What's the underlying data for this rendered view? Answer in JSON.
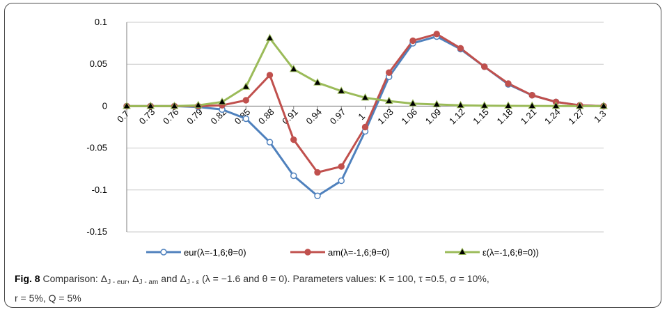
{
  "chart_data": {
    "type": "line",
    "x": [
      "0.7",
      "0.73",
      "0.76",
      "0.79",
      "0.82",
      "0.85",
      "0.88",
      "0.91",
      "0.94",
      "0.97",
      "1",
      "1.03",
      "1.06",
      "1.09",
      "1.12",
      "1.15",
      "1.18",
      "1.21",
      "1.24",
      "1.27",
      "1.3"
    ],
    "ylim": [
      -0.15,
      0.1
    ],
    "yticks": [
      "0.1",
      "0.05",
      "0",
      "-0.05",
      "-0.1",
      "-0.15"
    ],
    "ytick_values": [
      0.1,
      0.05,
      0,
      -0.05,
      -0.1,
      -0.15
    ],
    "grid": "horizontal",
    "legend_position": "bottom",
    "series": [
      {
        "name": "eur(λ=-1,6;θ=0)",
        "color": "#4F81BD",
        "marker": "open-circle",
        "values": [
          0,
          0,
          0,
          -0.001,
          -0.004,
          -0.015,
          -0.043,
          -0.083,
          -0.107,
          -0.089,
          -0.03,
          0.035,
          0.075,
          0.083,
          0.068,
          0.047,
          0.026,
          0.013,
          0.005,
          0.001,
          0
        ]
      },
      {
        "name": "am(λ=-1,6;θ=0)",
        "color": "#C0504D",
        "marker": "filled-circle",
        "values": [
          0,
          0,
          0,
          0,
          0.001,
          0.007,
          0.037,
          -0.04,
          -0.079,
          -0.072,
          -0.025,
          0.04,
          0.078,
          0.086,
          0.069,
          0.047,
          0.027,
          0.013,
          0.005,
          0.001,
          0
        ]
      },
      {
        "name": "ε(λ=-1,6;θ=0))",
        "color": "#9BBB59",
        "marker": "filled-triangle",
        "values": [
          0,
          0,
          0,
          0.001,
          0.005,
          0.023,
          0.081,
          0.044,
          0.028,
          0.018,
          0.01,
          0.006,
          0.003,
          0.002,
          0.001,
          0.0005,
          0.0003,
          0.0002,
          0.0001,
          0,
          0
        ]
      }
    ]
  },
  "caption": {
    "fig_label": "Fig. 8",
    "t1": " Comparison: Δ",
    "s1": "J - eur",
    "t2": ", Δ",
    "s2": "J - am",
    "t3": " and Δ",
    "s3": "J - ε",
    "t4": " (λ = −1.6 and θ = 0). Parameters values: K = 100, τ =0.5, σ = 10%,",
    "line2": "r = 5%, Q = 5%"
  }
}
